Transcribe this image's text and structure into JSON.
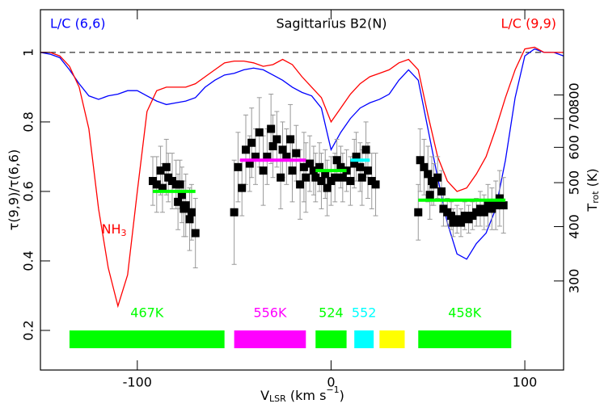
{
  "chart_data": {
    "type": "line",
    "title": "Sagittarius B2(N)",
    "xlabel": [
      "V",
      "LSR",
      " (km s",
      "−1",
      ")"
    ],
    "ylabel": "τ(9,9)/τ(6,6)",
    "y2label": [
      "T",
      "rot",
      " (K)"
    ],
    "xlim": [
      -150,
      120
    ],
    "xticks": [
      -100,
      0,
      100
    ],
    "ylim": [
      0.086,
      1.123
    ],
    "yticks": [
      0.2,
      0.4,
      0.6,
      0.8,
      1
    ],
    "y2ticks": [
      300,
      400,
      500,
      600,
      700,
      800
    ],
    "hline": 1,
    "x": [
      -150,
      -145,
      -140,
      -135,
      -130,
      -125,
      -120,
      -115,
      -110,
      -105,
      -100,
      -95,
      -90,
      -85,
      -80,
      -75,
      -70,
      -65,
      -60,
      -55,
      -50,
      -45,
      -40,
      -35,
      -30,
      -25,
      -20,
      -15,
      -10,
      -5,
      0,
      5,
      10,
      15,
      20,
      25,
      30,
      35,
      40,
      45,
      50,
      55,
      60,
      65,
      70,
      75,
      80,
      85,
      90,
      95,
      100,
      105,
      110,
      115,
      120
    ],
    "series": [
      {
        "name": "L/C (6,6)",
        "color": "#0000ff",
        "values": [
          1.0,
          0.995,
          0.985,
          0.95,
          0.91,
          0.875,
          0.865,
          0.875,
          0.88,
          0.89,
          0.89,
          0.875,
          0.86,
          0.85,
          0.855,
          0.86,
          0.87,
          0.9,
          0.92,
          0.935,
          0.94,
          0.95,
          0.955,
          0.95,
          0.935,
          0.92,
          0.9,
          0.885,
          0.875,
          0.84,
          0.72,
          0.77,
          0.81,
          0.84,
          0.855,
          0.865,
          0.88,
          0.92,
          0.95,
          0.92,
          0.78,
          0.64,
          0.51,
          0.42,
          0.405,
          0.45,
          0.48,
          0.55,
          0.69,
          0.87,
          0.99,
          1.01,
          1.0,
          1.0,
          0.99
        ]
      },
      {
        "name": "L/C (9,9)",
        "color": "#ff0000",
        "values": [
          1.0,
          1.0,
          0.99,
          0.96,
          0.9,
          0.78,
          0.55,
          0.38,
          0.27,
          0.36,
          0.6,
          0.83,
          0.89,
          0.9,
          0.9,
          0.9,
          0.91,
          0.93,
          0.95,
          0.97,
          0.975,
          0.975,
          0.97,
          0.96,
          0.965,
          0.98,
          0.965,
          0.93,
          0.9,
          0.87,
          0.8,
          0.84,
          0.88,
          0.91,
          0.93,
          0.94,
          0.95,
          0.97,
          0.98,
          0.95,
          0.82,
          0.7,
          0.63,
          0.6,
          0.61,
          0.65,
          0.7,
          0.78,
          0.87,
          0.95,
          1.01,
          1.015,
          1.0,
          1.0,
          1.0
        ]
      }
    ],
    "annotation": {
      "text": [
        "NH",
        "3"
      ],
      "x": -112,
      "y": 0.49,
      "color": "#ff0000"
    },
    "points": {
      "color": "#000000",
      "error_color": "#999999",
      "x": [
        -92,
        -90,
        -88,
        -87,
        -85,
        -84,
        -82,
        -80,
        -79,
        -78,
        -77,
        -76,
        -75,
        -73,
        -72,
        -70,
        -50,
        -48,
        -46,
        -44,
        -42,
        -41,
        -39,
        -37,
        -35,
        -33,
        -31,
        -30,
        -28,
        -26,
        -25,
        -23,
        -21,
        -20,
        -18,
        -16,
        -14,
        -13,
        -11,
        -9,
        -8,
        -6,
        -5,
        -3,
        -2,
        0,
        2,
        3,
        5,
        6,
        8,
        10,
        12,
        13,
        15,
        16,
        18,
        19,
        21,
        23,
        45,
        46,
        48,
        50,
        51,
        52,
        53,
        55,
        57,
        58,
        60,
        62,
        63,
        65,
        67,
        69,
        71,
        73,
        75,
        77,
        79,
        81,
        83,
        85,
        87,
        89
      ],
      "values": [
        0.63,
        0.62,
        0.66,
        0.61,
        0.67,
        0.64,
        0.63,
        0.62,
        0.57,
        0.62,
        0.59,
        0.55,
        0.56,
        0.52,
        0.54,
        0.48,
        0.54,
        0.67,
        0.61,
        0.72,
        0.68,
        0.74,
        0.7,
        0.77,
        0.66,
        0.7,
        0.78,
        0.73,
        0.75,
        0.64,
        0.72,
        0.7,
        0.75,
        0.66,
        0.71,
        0.62,
        0.67,
        0.64,
        0.68,
        0.66,
        0.64,
        0.67,
        0.63,
        0.65,
        0.61,
        0.63,
        0.64,
        0.69,
        0.67,
        0.64,
        0.66,
        0.63,
        0.68,
        0.7,
        0.67,
        0.64,
        0.72,
        0.66,
        0.63,
        0.62,
        0.54,
        0.69,
        0.67,
        0.65,
        0.59,
        0.63,
        0.62,
        0.64,
        0.6,
        0.55,
        0.54,
        0.53,
        0.51,
        0.52,
        0.51,
        0.53,
        0.52,
        0.53,
        0.54,
        0.55,
        0.54,
        0.56,
        0.55,
        0.56,
        0.58,
        0.56
      ],
      "errors": [
        0.07,
        0.08,
        0.07,
        0.07,
        0.08,
        0.07,
        0.08,
        0.07,
        0.08,
        0.07,
        0.08,
        0.08,
        0.09,
        0.09,
        0.08,
        0.1,
        0.15,
        0.1,
        0.08,
        0.1,
        0.08,
        0.1,
        0.08,
        0.1,
        0.1,
        0.08,
        0.1,
        0.09,
        0.08,
        0.09,
        0.08,
        0.08,
        0.1,
        0.09,
        0.08,
        0.1,
        0.1,
        0.1,
        0.08,
        0.07,
        0.07,
        0.07,
        0.08,
        0.07,
        0.08,
        0.07,
        0.07,
        0.06,
        0.06,
        0.07,
        0.06,
        0.07,
        0.07,
        0.07,
        0.07,
        0.08,
        0.08,
        0.08,
        0.08,
        0.09,
        0.08,
        0.09,
        0.08,
        0.08,
        0.07,
        0.07,
        0.06,
        0.06,
        0.06,
        0.05,
        0.04,
        0.04,
        0.04,
        0.04,
        0.04,
        0.04,
        0.04,
        0.04,
        0.04,
        0.05,
        0.05,
        0.06,
        0.06,
        0.07,
        0.08,
        0.08
      ]
    },
    "averages": [
      {
        "x": [
          -92,
          -70
        ],
        "value": 0.6,
        "color": "#00ff00"
      },
      {
        "x": [
          -47,
          -13
        ],
        "value": 0.69,
        "color": "#ff00ff"
      },
      {
        "x": [
          -8,
          8
        ],
        "value": 0.66,
        "color": "#00ff00"
      },
      {
        "x": [
          10,
          20
        ],
        "value": 0.69,
        "color": "#00ffff"
      },
      {
        "x": [
          45,
          90
        ],
        "value": 0.575,
        "color": "#00ff00"
      }
    ],
    "bands": [
      {
        "x": [
          -135,
          -55
        ],
        "color": "#00ff00",
        "label": "467K"
      },
      {
        "x": [
          -50,
          -13
        ],
        "color": "#ff00ff",
        "label": "556K"
      },
      {
        "x": [
          -8,
          8
        ],
        "color": "#00ff00",
        "label": "524"
      },
      {
        "x": [
          12,
          22
        ],
        "color": "#00ffff",
        "label": "552"
      },
      {
        "x": [
          25,
          38
        ],
        "color": "#ffff00"
      },
      {
        "x": [
          45,
          93
        ],
        "color": "#00ff00",
        "label": "458K"
      }
    ]
  }
}
